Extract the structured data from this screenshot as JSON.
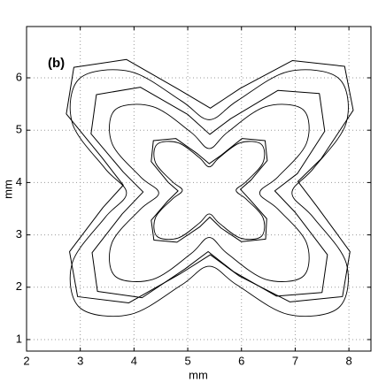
{
  "chart_data": {
    "type": "line",
    "annotation": "(b)",
    "xlabel": "mm",
    "ylabel": "mm",
    "xlim": [
      2,
      8.41
    ],
    "ylim": [
      0.78,
      6.98
    ],
    "xticks": [
      2,
      3,
      4,
      5,
      6,
      7,
      8
    ],
    "yticks": [
      1,
      2,
      3,
      4,
      5,
      6
    ],
    "grid": true,
    "closed": true,
    "series": [
      {
        "color": "#000000",
        "smooth": true,
        "x": [
          6.94,
          7.34,
          7.95,
          7.81,
          6.87,
          5.92,
          5.4,
          4.88,
          3.93,
          2.99,
          2.85,
          3.46,
          3.86,
          3.46,
          2.85,
          2.99,
          3.93,
          4.88,
          5.4,
          5.92,
          6.87,
          7.81,
          7.95,
          7.34
        ],
        "values": [
          3.8,
          4.27,
          5.14,
          5.99,
          6.12,
          5.56,
          5.2,
          5.56,
          6.12,
          5.99,
          5.14,
          4.27,
          3.8,
          3.33,
          2.46,
          1.61,
          1.48,
          2.04,
          2.4,
          2.04,
          1.48,
          1.61,
          2.46,
          3.33
        ]
      },
      {
        "color": "#000000",
        "smooth": true,
        "x": [
          6.34,
          6.68,
          7.21,
          7.15,
          6.45,
          5.74,
          5.4,
          5.06,
          4.35,
          3.65,
          3.59,
          4.12,
          4.46,
          4.12,
          3.59,
          3.65,
          4.35,
          5.06,
          5.4,
          5.74,
          6.45,
          7.15,
          7.21,
          6.68
        ],
        "values": [
          3.8,
          4.11,
          4.75,
          5.39,
          5.45,
          4.96,
          4.65,
          4.96,
          5.45,
          5.39,
          4.75,
          4.11,
          3.8,
          3.49,
          2.85,
          2.21,
          2.15,
          2.64,
          2.95,
          2.64,
          2.15,
          2.21,
          2.85,
          3.49
        ]
      },
      {
        "color": "#000000",
        "smooth": true,
        "x": [
          5.9,
          6.09,
          6.4,
          6.37,
          5.98,
          5.59,
          5.4,
          5.21,
          4.82,
          4.43,
          4.4,
          4.71,
          4.9,
          4.71,
          4.4,
          4.43,
          4.82,
          5.21,
          5.4,
          5.59,
          5.98,
          6.37,
          6.4,
          6.09
        ],
        "values": [
          3.85,
          4.02,
          4.38,
          4.73,
          4.76,
          4.48,
          4.3,
          4.48,
          4.76,
          4.73,
          4.38,
          4.02,
          3.85,
          3.68,
          3.33,
          2.97,
          2.94,
          3.22,
          3.4,
          3.22,
          2.94,
          2.97,
          3.33,
          3.68
        ]
      },
      {
        "color": "#000000",
        "smooth": false,
        "x": [
          7.05,
          7.48,
          8.08,
          7.92,
          6.95,
          5.98,
          5.42,
          4.83,
          3.86,
          2.88,
          2.74,
          3.4,
          3.8,
          3.42,
          2.8,
          2.95,
          3.9,
          4.85,
          5.42,
          5.95,
          6.9,
          7.88,
          8.02,
          7.4
        ],
        "values": [
          4.02,
          4.45,
          5.38,
          6.22,
          6.33,
          5.8,
          5.42,
          5.78,
          6.35,
          6.2,
          5.31,
          4.48,
          3.95,
          3.52,
          2.68,
          1.82,
          1.7,
          2.25,
          2.62,
          2.22,
          1.72,
          1.82,
          2.68,
          3.55
        ]
      },
      {
        "color": "#000000",
        "smooth": false,
        "x": [
          6.62,
          7.04,
          7.55,
          7.45,
          6.68,
          5.8,
          5.41,
          5.0,
          4.12,
          3.3,
          3.2,
          3.8,
          4.17,
          3.78,
          3.22,
          3.32,
          4.15,
          4.95,
          5.38,
          5.85,
          6.65,
          7.5,
          7.6,
          7.0
        ],
        "values": [
          3.84,
          4.17,
          4.98,
          5.7,
          5.76,
          5.22,
          4.92,
          5.3,
          5.82,
          5.68,
          4.93,
          4.2,
          3.82,
          3.4,
          2.66,
          1.92,
          1.8,
          2.35,
          2.68,
          2.3,
          1.83,
          1.9,
          2.62,
          3.43
        ]
      },
      {
        "color": "#000000",
        "smooth": false,
        "x": [
          5.98,
          6.18,
          6.48,
          6.44,
          6.01,
          5.62,
          5.4,
          5.18,
          4.78,
          4.36,
          4.32,
          4.64,
          4.82,
          4.63,
          4.32,
          4.37,
          4.8,
          5.22,
          5.41,
          5.62,
          6.0,
          6.45,
          6.47,
          6.16
        ],
        "values": [
          3.87,
          4.05,
          4.42,
          4.8,
          4.84,
          4.52,
          4.36,
          4.55,
          4.84,
          4.8,
          4.4,
          4.0,
          3.84,
          3.65,
          3.28,
          2.9,
          2.86,
          3.15,
          3.34,
          3.13,
          2.87,
          2.92,
          3.31,
          3.67
        ]
      }
    ]
  }
}
